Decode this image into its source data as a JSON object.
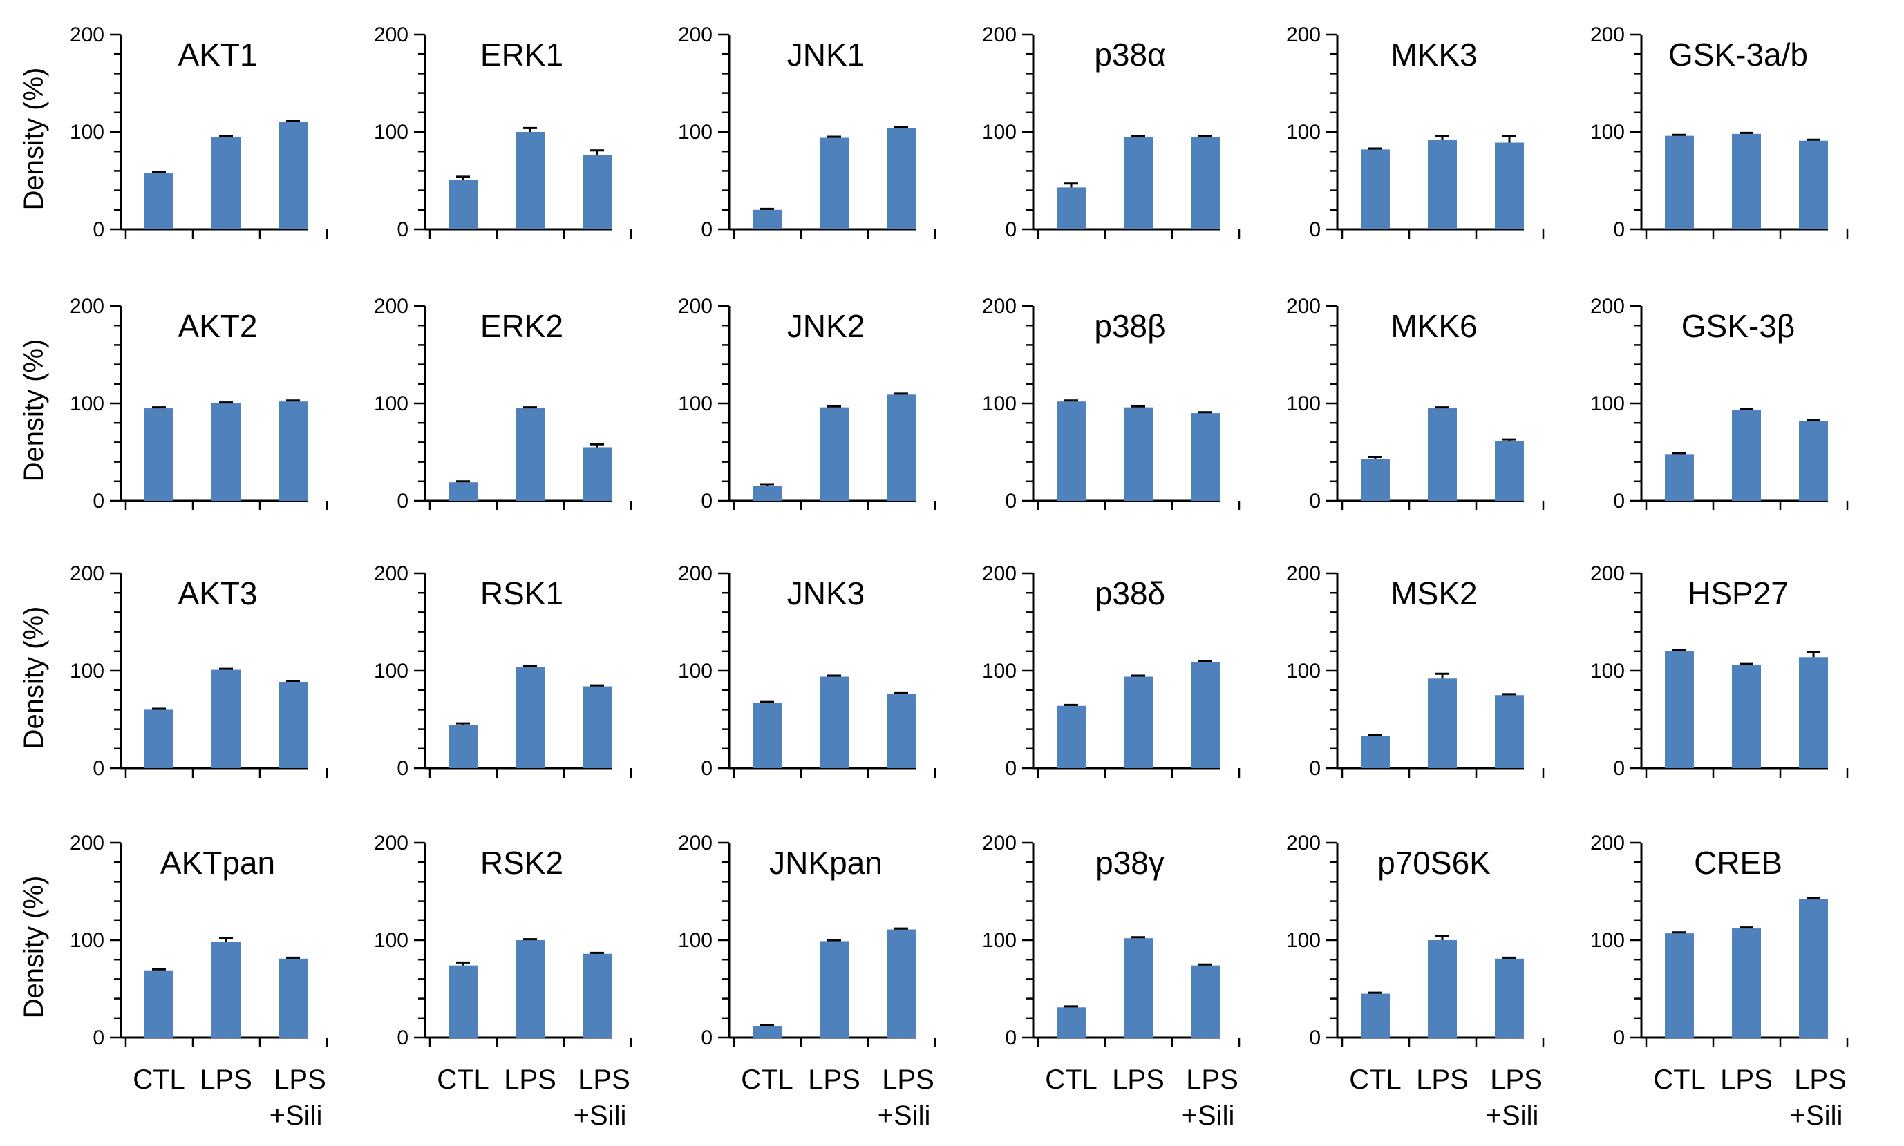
{
  "y_axis_label": "Density (%)",
  "x_categories": [
    "CTL",
    "LPS",
    "LPS",
    "+Sili"
  ],
  "colors": {
    "bar": "#4f81bd",
    "axis": "#000000",
    "error": "#000000"
  },
  "chart_data": [
    {
      "type": "bar",
      "title": "AKT1",
      "categories": [
        "CTL",
        "LPS",
        "LPS +Sili"
      ],
      "values": [
        58,
        95,
        110
      ],
      "errors": [
        1,
        1,
        1
      ],
      "ylim": [
        0,
        200
      ],
      "yticks": [
        "0",
        "100",
        "200"
      ]
    },
    {
      "type": "bar",
      "title": "ERK1",
      "categories": [
        "CTL",
        "LPS",
        "LPS +Sili"
      ],
      "values": [
        51,
        100,
        76
      ],
      "errors": [
        3,
        4,
        5
      ],
      "ylim": [
        0,
        200
      ],
      "yticks": [
        "0",
        "100",
        "200"
      ]
    },
    {
      "type": "bar",
      "title": "JNK1",
      "categories": [
        "CTL",
        "LPS",
        "LPS +Sili"
      ],
      "values": [
        20,
        94,
        104
      ],
      "errors": [
        1,
        1,
        1
      ],
      "ylim": [
        0,
        200
      ],
      "yticks": [
        "0",
        "100",
        "200"
      ]
    },
    {
      "type": "bar",
      "title": "p38α",
      "categories": [
        "CTL",
        "LPS",
        "LPS +Sili"
      ],
      "values": [
        43,
        95,
        95
      ],
      "errors": [
        4,
        1,
        1
      ],
      "ylim": [
        0,
        200
      ],
      "yticks": [
        "0",
        "100",
        "200"
      ]
    },
    {
      "type": "bar",
      "title": "MKK3",
      "categories": [
        "CTL",
        "LPS",
        "LPS +Sili"
      ],
      "values": [
        82,
        92,
        89
      ],
      "errors": [
        1,
        4,
        7
      ],
      "ylim": [
        0,
        200
      ],
      "yticks": [
        "0",
        "100",
        "200"
      ]
    },
    {
      "type": "bar",
      "title": "GSK-3a/b",
      "categories": [
        "CTL",
        "LPS",
        "LPS +Sili"
      ],
      "values": [
        96,
        98,
        91
      ],
      "errors": [
        1,
        1,
        1
      ],
      "ylim": [
        0,
        200
      ],
      "yticks": [
        "0",
        "100",
        "200"
      ]
    },
    {
      "type": "bar",
      "title": "AKT2",
      "categories": [
        "CTL",
        "LPS",
        "LPS +Sili"
      ],
      "values": [
        95,
        100,
        102
      ],
      "errors": [
        1,
        1,
        1
      ],
      "ylim": [
        0,
        200
      ],
      "yticks": [
        "0",
        "100",
        "200"
      ]
    },
    {
      "type": "bar",
      "title": "ERK2",
      "categories": [
        "CTL",
        "LPS",
        "LPS +Sili"
      ],
      "values": [
        19,
        95,
        55
      ],
      "errors": [
        1,
        1,
        3
      ],
      "ylim": [
        0,
        200
      ],
      "yticks": [
        "0",
        "100",
        "200"
      ]
    },
    {
      "type": "bar",
      "title": "JNK2",
      "categories": [
        "CTL",
        "LPS",
        "LPS +Sili"
      ],
      "values": [
        15,
        96,
        109
      ],
      "errors": [
        2,
        1,
        1
      ],
      "ylim": [
        0,
        200
      ],
      "yticks": [
        "0",
        "100",
        "200"
      ]
    },
    {
      "type": "bar",
      "title": "p38β",
      "categories": [
        "CTL",
        "LPS",
        "LPS +Sili"
      ],
      "values": [
        102,
        96,
        90
      ],
      "errors": [
        1,
        1,
        1
      ],
      "ylim": [
        0,
        200
      ],
      "yticks": [
        "0",
        "100",
        "200"
      ]
    },
    {
      "type": "bar",
      "title": "MKK6",
      "categories": [
        "CTL",
        "LPS",
        "LPS +Sili"
      ],
      "values": [
        43,
        95,
        61
      ],
      "errors": [
        2,
        1,
        2
      ],
      "ylim": [
        0,
        200
      ],
      "yticks": [
        "0",
        "100",
        "200"
      ]
    },
    {
      "type": "bar",
      "title": "GSK-3β",
      "categories": [
        "CTL",
        "LPS",
        "LPS +Sili"
      ],
      "values": [
        48,
        93,
        82
      ],
      "errors": [
        1,
        1,
        1
      ],
      "ylim": [
        0,
        200
      ],
      "yticks": [
        "0",
        "100",
        "200"
      ]
    },
    {
      "type": "bar",
      "title": "AKT3",
      "categories": [
        "CTL",
        "LPS",
        "LPS +Sili"
      ],
      "values": [
        60,
        101,
        88
      ],
      "errors": [
        1,
        1,
        1
      ],
      "ylim": [
        0,
        200
      ],
      "yticks": [
        "0",
        "100",
        "200"
      ]
    },
    {
      "type": "bar",
      "title": "RSK1",
      "categories": [
        "CTL",
        "LPS",
        "LPS +Sili"
      ],
      "values": [
        44,
        104,
        84
      ],
      "errors": [
        2,
        1,
        1
      ],
      "ylim": [
        0,
        200
      ],
      "yticks": [
        "0",
        "100",
        "200"
      ]
    },
    {
      "type": "bar",
      "title": "JNK3",
      "categories": [
        "CTL",
        "LPS",
        "LPS +Sili"
      ],
      "values": [
        67,
        94,
        76
      ],
      "errors": [
        1,
        1,
        1
      ],
      "ylim": [
        0,
        200
      ],
      "yticks": [
        "0",
        "100",
        "200"
      ]
    },
    {
      "type": "bar",
      "title": "p38δ",
      "categories": [
        "CTL",
        "LPS",
        "LPS +Sili"
      ],
      "values": [
        64,
        94,
        109
      ],
      "errors": [
        1,
        1,
        1
      ],
      "ylim": [
        0,
        200
      ],
      "yticks": [
        "0",
        "100",
        "200"
      ]
    },
    {
      "type": "bar",
      "title": "MSK2",
      "categories": [
        "CTL",
        "LPS",
        "LPS +Sili"
      ],
      "values": [
        33,
        92,
        75
      ],
      "errors": [
        1,
        5,
        1
      ],
      "ylim": [
        0,
        200
      ],
      "yticks": [
        "0",
        "100",
        "200"
      ]
    },
    {
      "type": "bar",
      "title": "HSP27",
      "categories": [
        "CTL",
        "LPS",
        "LPS +Sili"
      ],
      "values": [
        120,
        106,
        114
      ],
      "errors": [
        1,
        1,
        5
      ],
      "ylim": [
        0,
        200
      ],
      "yticks": [
        "0",
        "100",
        "200"
      ]
    },
    {
      "type": "bar",
      "title": "AKTpan",
      "categories": [
        "CTL",
        "LPS",
        "LPS +Sili"
      ],
      "values": [
        69,
        98,
        81
      ],
      "errors": [
        1,
        4,
        1
      ],
      "ylim": [
        0,
        200
      ],
      "yticks": [
        "0",
        "100",
        "200"
      ]
    },
    {
      "type": "bar",
      "title": "RSK2",
      "categories": [
        "CTL",
        "LPS",
        "LPS +Sili"
      ],
      "values": [
        74,
        100,
        86
      ],
      "errors": [
        3,
        1,
        1
      ],
      "ylim": [
        0,
        200
      ],
      "yticks": [
        "0",
        "100",
        "200"
      ]
    },
    {
      "type": "bar",
      "title": "JNKpan",
      "categories": [
        "CTL",
        "LPS",
        "LPS +Sili"
      ],
      "values": [
        12,
        99,
        111
      ],
      "errors": [
        1,
        1,
        1
      ],
      "ylim": [
        0,
        200
      ],
      "yticks": [
        "0",
        "100",
        "200"
      ]
    },
    {
      "type": "bar",
      "title": "p38γ",
      "categories": [
        "CTL",
        "LPS",
        "LPS +Sili"
      ],
      "values": [
        31,
        102,
        74
      ],
      "errors": [
        1,
        1,
        1
      ],
      "ylim": [
        0,
        200
      ],
      "yticks": [
        "0",
        "100",
        "200"
      ]
    },
    {
      "type": "bar",
      "title": "p70S6K",
      "categories": [
        "CTL",
        "LPS",
        "LPS +Sili"
      ],
      "values": [
        45,
        100,
        81
      ],
      "errors": [
        1,
        4,
        1
      ],
      "ylim": [
        0,
        200
      ],
      "yticks": [
        "0",
        "100",
        "200"
      ]
    },
    {
      "type": "bar",
      "title": "CREB",
      "categories": [
        "CTL",
        "LPS",
        "LPS +Sili"
      ],
      "values": [
        107,
        112,
        142
      ],
      "errors": [
        1,
        1,
        1
      ],
      "ylim": [
        0,
        200
      ],
      "yticks": [
        "0",
        "100",
        "200"
      ]
    }
  ]
}
